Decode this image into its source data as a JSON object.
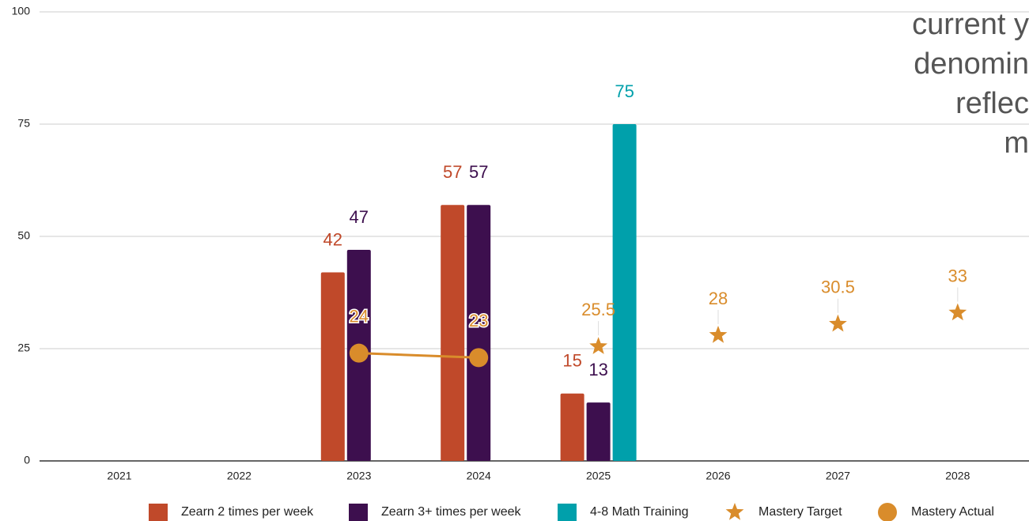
{
  "chart_data": {
    "type": "bar",
    "annotation_lines": [
      "current y",
      "denomin",
      "reflec",
      "m"
    ],
    "categories": [
      "2021",
      "2022",
      "2023",
      "2024",
      "2025",
      "2026",
      "2027",
      "2028"
    ],
    "series": [
      {
        "name": "Zearn 2 times per week",
        "type": "bar",
        "color": "#c0492a",
        "values": [
          null,
          null,
          42,
          57,
          15,
          null,
          null,
          null
        ]
      },
      {
        "name": "Zearn 3+ times per week",
        "type": "bar",
        "color": "#3d0f4e",
        "values": [
          null,
          null,
          47,
          57,
          13,
          null,
          null,
          null
        ]
      },
      {
        "name": "4-8 Math Training",
        "type": "bar",
        "color": "#00a0ab",
        "values": [
          null,
          null,
          null,
          null,
          75,
          null,
          null,
          null
        ]
      },
      {
        "name": "Mastery Target",
        "type": "star",
        "color": "#d98c2b",
        "values": [
          null,
          null,
          null,
          null,
          25.5,
          28,
          30.5,
          33
        ]
      },
      {
        "name": "Mastery Actual",
        "type": "line",
        "color": "#d98c2b",
        "values": [
          null,
          null,
          24,
          23,
          null,
          null,
          null,
          null
        ]
      }
    ],
    "ylim": [
      0,
      100
    ],
    "yticks": [
      0,
      25,
      50,
      75,
      100
    ],
    "grid": true,
    "legend": "bottom"
  }
}
